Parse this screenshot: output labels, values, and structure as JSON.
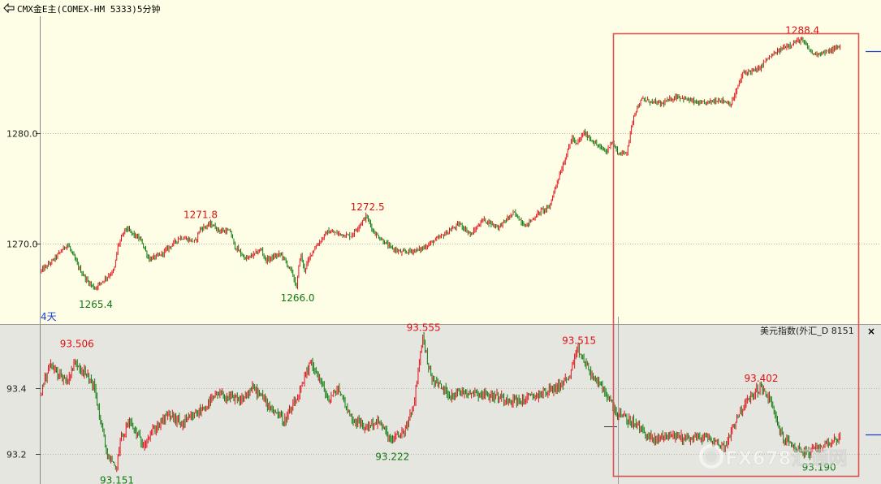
{
  "window": {
    "title": "CMX金E主(COMEX-HM 5333)5分钟"
  },
  "colors": {
    "up": "#e2101a",
    "down": "#0b7a0b",
    "box": "#e05050",
    "upper_bg": "#fefee6",
    "lower_bg": "#e6e6e0",
    "ann_high": "#e01010",
    "ann_low": "#117711"
  },
  "chart_data": [
    {
      "type": "candlestick",
      "title": "CMX金E主(COMEX-HM 5333)5分钟",
      "period_label": "4天",
      "y_ticks": [
        "1270.0",
        "1280.0"
      ],
      "ylim": [
        1262.7,
        1290.5
      ],
      "path": [
        [
          0,
          1267.5
        ],
        [
          3,
          1268.4
        ],
        [
          7,
          1270.0
        ],
        [
          10,
          1267.8
        ],
        [
          12,
          1266.7
        ],
        [
          14,
          1266.0
        ],
        [
          19,
          1267.6
        ],
        [
          20,
          1269.8
        ],
        [
          22,
          1271.4
        ],
        [
          26,
          1270.3
        ],
        [
          28,
          1268.6
        ],
        [
          31,
          1269.0
        ],
        [
          36,
          1270.6
        ],
        [
          40,
          1270.2
        ],
        [
          41,
          1271.3
        ],
        [
          44,
          1271.8
        ],
        [
          46,
          1271.2
        ],
        [
          49,
          1271.1
        ],
        [
          50,
          1269.8
        ],
        [
          53,
          1268.6
        ],
        [
          57,
          1269.5
        ],
        [
          58,
          1268.5
        ],
        [
          62,
          1269.1
        ],
        [
          65,
          1267.3
        ],
        [
          66,
          1266.0
        ],
        [
          67,
          1269.2
        ],
        [
          68,
          1267.6
        ],
        [
          70,
          1269.3
        ],
        [
          74,
          1271.1
        ],
        [
          80,
          1270.7
        ],
        [
          84,
          1272.5
        ],
        [
          86,
          1271.0
        ],
        [
          90,
          1269.7
        ],
        [
          93,
          1269.2
        ],
        [
          98,
          1269.5
        ],
        [
          103,
          1270.6
        ],
        [
          108,
          1271.8
        ],
        [
          111,
          1270.8
        ],
        [
          114,
          1272.2
        ],
        [
          118,
          1271.5
        ],
        [
          122,
          1272.8
        ],
        [
          125,
          1271.6
        ],
        [
          129,
          1273.0
        ],
        [
          131,
          1273.2
        ],
        [
          133,
          1275.5
        ],
        [
          135,
          1277.5
        ],
        [
          137,
          1279.6
        ],
        [
          138,
          1278.9
        ],
        [
          140,
          1280.0
        ],
        [
          144,
          1278.7
        ],
        [
          146,
          1278.3
        ],
        [
          147,
          1279.3
        ],
        [
          149,
          1278.1
        ],
        [
          151,
          1278.2
        ],
        [
          153,
          1281.8
        ],
        [
          155,
          1283.0
        ],
        [
          160,
          1282.6
        ],
        [
          164,
          1283.3
        ],
        [
          170,
          1282.6
        ],
        [
          175,
          1283.0
        ],
        [
          178,
          1282.6
        ],
        [
          181,
          1285.4
        ],
        [
          185,
          1285.7
        ],
        [
          187,
          1286.6
        ],
        [
          192,
          1287.8
        ],
        [
          196,
          1288.4
        ],
        [
          199,
          1287.1
        ],
        [
          203,
          1287.3
        ],
        [
          206,
          1287.8
        ]
      ],
      "annotations": [
        {
          "text": "1271.8",
          "x": 41,
          "y": 1271.8,
          "kind": "high"
        },
        {
          "text": "1272.5",
          "x": 84,
          "y": 1272.5,
          "kind": "high"
        },
        {
          "text": "1288.4",
          "x": 196,
          "y": 1288.4,
          "kind": "high"
        },
        {
          "text": "1265.4",
          "x": 14,
          "y": 1265.4,
          "kind": "low"
        },
        {
          "text": "1266.0",
          "x": 66,
          "y": 1266.0,
          "kind": "low"
        }
      ]
    },
    {
      "type": "candlestick",
      "title": "美元指数(外汇_D 8151",
      "y_ticks": [
        "93.2",
        "93.4"
      ],
      "ylim": [
        93.11,
        93.59
      ],
      "path": [
        [
          0,
          93.38
        ],
        [
          2,
          93.47
        ],
        [
          6,
          93.42
        ],
        [
          8,
          93.48
        ],
        [
          12,
          93.41
        ],
        [
          15,
          93.2
        ],
        [
          17,
          93.15
        ],
        [
          18,
          93.24
        ],
        [
          20,
          93.3
        ],
        [
          23,
          93.23
        ],
        [
          26,
          93.28
        ],
        [
          29,
          93.32
        ],
        [
          32,
          93.29
        ],
        [
          36,
          93.33
        ],
        [
          40,
          93.38
        ],
        [
          45,
          93.36
        ],
        [
          48,
          93.4
        ],
        [
          52,
          93.34
        ],
        [
          55,
          93.3
        ],
        [
          58,
          93.37
        ],
        [
          61,
          93.48
        ],
        [
          63,
          93.42
        ],
        [
          65,
          93.36
        ],
        [
          67,
          93.4
        ],
        [
          70,
          93.31
        ],
        [
          73,
          93.28
        ],
        [
          76,
          93.3
        ],
        [
          79,
          93.24
        ],
        [
          82,
          93.27
        ],
        [
          84,
          93.34
        ],
        [
          86,
          93.555
        ],
        [
          88,
          93.43
        ],
        [
          92,
          93.38
        ],
        [
          96,
          93.39
        ],
        [
          100,
          93.38
        ],
        [
          104,
          93.37
        ],
        [
          108,
          93.36
        ],
        [
          112,
          93.38
        ],
        [
          116,
          93.4
        ],
        [
          119,
          93.43
        ],
        [
          121,
          93.515
        ],
        [
          124,
          93.44
        ],
        [
          127,
          93.39
        ],
        [
          130,
          93.32
        ],
        [
          134,
          93.29
        ],
        [
          138,
          93.24
        ],
        [
          141,
          93.26
        ],
        [
          145,
          93.25
        ],
        [
          150,
          93.25
        ],
        [
          154,
          93.22
        ],
        [
          157,
          93.32
        ],
        [
          161,
          93.39
        ],
        [
          162,
          93.402
        ],
        [
          164,
          93.37
        ],
        [
          167,
          93.25
        ],
        [
          170,
          93.22
        ],
        [
          173,
          93.2
        ],
        [
          175,
          93.22
        ],
        [
          178,
          93.24
        ],
        [
          180,
          93.25
        ]
      ],
      "annotations": [
        {
          "text": "93.506",
          "x": 8,
          "y": 93.506,
          "kind": "high"
        },
        {
          "text": "93.555",
          "x": 86,
          "y": 93.555,
          "kind": "high"
        },
        {
          "text": "93.515",
          "x": 121,
          "y": 93.515,
          "kind": "high"
        },
        {
          "text": "93.402",
          "x": 162,
          "y": 93.402,
          "kind": "high"
        },
        {
          "text": "93.151",
          "x": 17,
          "y": 93.151,
          "kind": "low"
        },
        {
          "text": "93.222",
          "x": 79,
          "y": 93.222,
          "kind": "low"
        },
        {
          "text": "93.190",
          "x": 175,
          "y": 93.19,
          "kind": "low"
        }
      ]
    }
  ],
  "watermark": {
    "text": "FX678汇通网",
    "logo": "fx678-logo"
  },
  "close_label": "×"
}
